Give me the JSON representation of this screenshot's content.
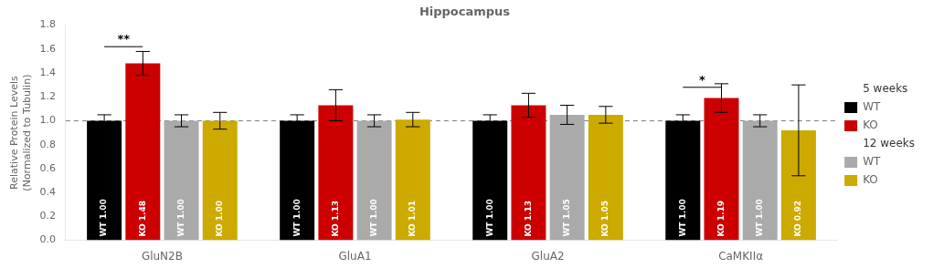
{
  "chart_data": {
    "type": "bar",
    "title": "Hippocampus",
    "ylabel": "Relative Protein Levels\n(Normalized to Tubulin)",
    "categories": [
      "GluN2B",
      "GluA1",
      "GluA2",
      "CaMKIIα"
    ],
    "series": [
      {
        "name": "WT",
        "group": "5 weeks",
        "color": "#000000",
        "values": [
          1.0,
          1.0,
          1.0,
          1.0
        ],
        "errors": [
          0.05,
          0.05,
          0.05,
          0.05
        ],
        "value_labels": [
          "WT 1.00",
          "WT 1.00",
          "WT 1.00",
          "WT 1.00"
        ]
      },
      {
        "name": "KO",
        "group": "5 weeks",
        "color": "#cc0000",
        "values": [
          1.48,
          1.13,
          1.13,
          1.19
        ],
        "errors": [
          0.1,
          0.13,
          0.1,
          0.12
        ],
        "value_labels": [
          "KO 1.48",
          "KO 1.13",
          "KO 1.13",
          "KO 1.19"
        ]
      },
      {
        "name": "WT",
        "group": "12 weeks",
        "color": "#aaaaaa",
        "values": [
          1.0,
          1.0,
          1.05,
          1.0
        ],
        "errors": [
          0.05,
          0.05,
          0.08,
          0.05
        ],
        "value_labels": [
          "WT 1.00",
          "WT 1.00",
          "WT 1.05",
          "WT 1.00"
        ]
      },
      {
        "name": "KO",
        "group": "12 weeks",
        "color": "#ccaa00",
        "values": [
          1.0,
          1.01,
          1.05,
          0.92
        ],
        "errors": [
          0.07,
          0.06,
          0.07,
          0.38
        ],
        "value_labels": [
          "KO 1.00",
          "KO 1.01",
          "KO 1.05",
          "KO 0.92"
        ]
      }
    ],
    "ylim": [
      0,
      1.8
    ],
    "yticks": [
      {
        "value": 0,
        "label": "0.0"
      },
      0.2,
      0.4,
      0.6,
      0.8,
      {
        "value": 1.0,
        "label": "1.0"
      },
      1.2,
      1.4,
      1.6,
      1.8
    ],
    "grid": false,
    "legend": "right",
    "data_labels": true,
    "reference_lines": [
      {
        "y": 1.0,
        "line_style": "dashed"
      }
    ],
    "annotations": [
      {
        "text": "**",
        "y": 1.62,
        "category": "GluN2B",
        "series": [
          0,
          1
        ]
      },
      {
        "text": "*",
        "y": 1.28,
        "category": "CaMKIIα",
        "series": [
          0,
          1
        ]
      }
    ]
  }
}
